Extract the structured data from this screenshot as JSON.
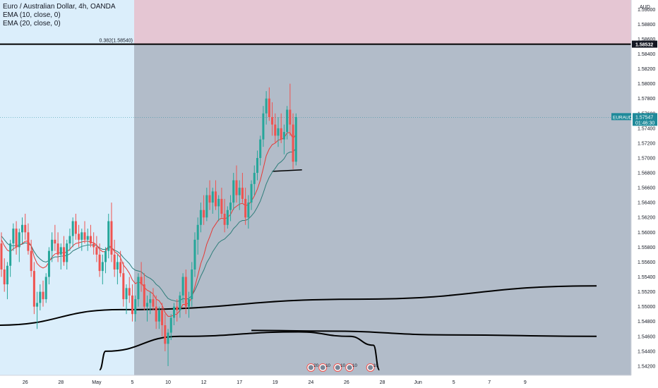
{
  "legend": {
    "symbol_line": "Euro / Australian Dollar, 4h, OANDA",
    "ema10_line": "EMA (10, close, 0)",
    "ema20_line": "EMA (20, close, 0)"
  },
  "colors": {
    "bull": "#26a69a",
    "bear": "#ef5350",
    "ema10": "#e53935",
    "ema20": "#2e7d7a",
    "left_bg": "#dbeefb",
    "zone_gray": "#b2bcc9",
    "zone_pink": "#e5c6d3",
    "axis_bg": "#ffffff",
    "price_label_bg": "#1f8a9a",
    "level_label_bg": "#131722"
  },
  "chart_data": {
    "type": "candlestick",
    "title": "Euro / Australian Dollar, 4h, OANDA",
    "currency_label": "AUD",
    "indicators": [
      "EMA (10, close, 0)",
      "EMA (20, close, 0)"
    ],
    "y_range": [
      1.541,
      1.6
    ],
    "y_ticks": [
      "1.59000",
      "1.58800",
      "1.58600",
      "1.58400",
      "1.58200",
      "1.58000",
      "1.57800",
      "1.57600",
      "1.57400",
      "1.57200",
      "1.57000",
      "1.56800",
      "1.56600",
      "1.56400",
      "1.56200",
      "1.56000",
      "1.55800",
      "1.55600",
      "1.55400",
      "1.55200",
      "1.55000",
      "1.54800",
      "1.54600",
      "1.54400",
      "1.54200"
    ],
    "x_ticks": [
      {
        "label": "26",
        "i": 8
      },
      {
        "label": "28",
        "i": 20
      },
      {
        "label": "May",
        "i": 32
      },
      {
        "label": "5",
        "i": 44
      },
      {
        "label": "10",
        "i": 56
      },
      {
        "label": "12",
        "i": 68
      },
      {
        "label": "17",
        "i": 80
      },
      {
        "label": "19",
        "i": 92
      },
      {
        "label": "24",
        "i": 104
      },
      {
        "label": "26",
        "i": 116
      },
      {
        "label": "28",
        "i": 128
      },
      {
        "label": "Jun",
        "i": 140
      },
      {
        "label": "5",
        "i": 152
      },
      {
        "label": "7",
        "i": 164
      },
      {
        "label": "9",
        "i": 176
      }
    ],
    "fib_level": {
      "label": "0.382(1.58540)",
      "value": 1.5854
    },
    "level_line": {
      "label": "1.58532",
      "value": 1.58532
    },
    "current_price": {
      "symbol": "EURAUD",
      "value": "1.57547",
      "countdown": "01:46:30",
      "y": 1.57547
    },
    "candles": [
      [
        1.5585,
        1.56,
        1.554,
        1.555
      ],
      [
        1.555,
        1.5565,
        1.552,
        1.553
      ],
      [
        1.553,
        1.556,
        1.551,
        1.5555
      ],
      [
        1.5555,
        1.559,
        1.554,
        1.5585
      ],
      [
        1.5585,
        1.5612,
        1.5575,
        1.5605
      ],
      [
        1.5605,
        1.5615,
        1.557,
        1.558
      ],
      [
        1.558,
        1.5605,
        1.556,
        1.56
      ],
      [
        1.56,
        1.562,
        1.5585,
        1.561
      ],
      [
        1.561,
        1.5625,
        1.559,
        1.56
      ],
      [
        1.56,
        1.5612,
        1.557,
        1.5575
      ],
      [
        1.5575,
        1.559,
        1.554,
        1.5548
      ],
      [
        1.5548,
        1.556,
        1.549,
        1.55
      ],
      [
        1.55,
        1.552,
        1.547,
        1.5505
      ],
      [
        1.5505,
        1.553,
        1.5495,
        1.552
      ],
      [
        1.552,
        1.5535,
        1.55,
        1.551
      ],
      [
        1.551,
        1.5545,
        1.5505,
        1.554
      ],
      [
        1.554,
        1.558,
        1.553,
        1.5575
      ],
      [
        1.5575,
        1.56,
        1.556,
        1.559
      ],
      [
        1.559,
        1.561,
        1.5575,
        1.5585
      ],
      [
        1.5585,
        1.56,
        1.556,
        1.557
      ],
      [
        1.557,
        1.5585,
        1.555,
        1.558
      ],
      [
        1.558,
        1.5595,
        1.5555,
        1.556
      ],
      [
        1.556,
        1.559,
        1.555,
        1.5585
      ],
      [
        1.5585,
        1.5605,
        1.5575,
        1.5595
      ],
      [
        1.5595,
        1.562,
        1.558,
        1.5615
      ],
      [
        1.5615,
        1.5625,
        1.559,
        1.5598
      ],
      [
        1.5598,
        1.561,
        1.558,
        1.559
      ],
      [
        1.559,
        1.5605,
        1.5575,
        1.56
      ],
      [
        1.56,
        1.5615,
        1.5585,
        1.559
      ],
      [
        1.559,
        1.5605,
        1.5575,
        1.5595
      ],
      [
        1.5595,
        1.561,
        1.558,
        1.5585
      ],
      [
        1.5585,
        1.56,
        1.557,
        1.558
      ],
      [
        1.558,
        1.5595,
        1.556,
        1.557
      ],
      [
        1.557,
        1.5585,
        1.554,
        1.5548
      ],
      [
        1.5548,
        1.557,
        1.553,
        1.556
      ],
      [
        1.556,
        1.558,
        1.5545,
        1.5575
      ],
      [
        1.5575,
        1.5625,
        1.5565,
        1.5615
      ],
      [
        1.5615,
        1.564,
        1.556,
        1.557
      ],
      [
        1.557,
        1.559,
        1.554,
        1.555
      ],
      [
        1.555,
        1.557,
        1.553,
        1.556
      ],
      [
        1.556,
        1.5575,
        1.554,
        1.5545
      ],
      [
        1.5545,
        1.556,
        1.55,
        1.551
      ],
      [
        1.551,
        1.553,
        1.549,
        1.5525
      ],
      [
        1.5525,
        1.554,
        1.5505,
        1.5515
      ],
      [
        1.5515,
        1.553,
        1.548,
        1.549
      ],
      [
        1.549,
        1.5515,
        1.548,
        1.551
      ],
      [
        1.551,
        1.5545,
        1.55,
        1.554
      ],
      [
        1.554,
        1.556,
        1.552,
        1.553
      ],
      [
        1.553,
        1.5545,
        1.5495,
        1.55
      ],
      [
        1.55,
        1.5515,
        1.548,
        1.5505
      ],
      [
        1.5505,
        1.552,
        1.549,
        1.551
      ],
      [
        1.551,
        1.5525,
        1.5495,
        1.55
      ],
      [
        1.55,
        1.5515,
        1.547,
        1.548
      ],
      [
        1.548,
        1.55,
        1.547,
        1.5495
      ],
      [
        1.5495,
        1.5505,
        1.546,
        1.5475
      ],
      [
        1.5475,
        1.549,
        1.544,
        1.545
      ],
      [
        1.545,
        1.547,
        1.542,
        1.5465
      ],
      [
        1.5465,
        1.549,
        1.5455,
        1.5485
      ],
      [
        1.5485,
        1.5505,
        1.5475,
        1.55
      ],
      [
        1.55,
        1.551,
        1.548,
        1.5495
      ],
      [
        1.5495,
        1.552,
        1.5485,
        1.5515
      ],
      [
        1.5515,
        1.5545,
        1.5505,
        1.554
      ],
      [
        1.554,
        1.555,
        1.549,
        1.55
      ],
      [
        1.55,
        1.552,
        1.5485,
        1.551
      ],
      [
        1.551,
        1.556,
        1.55,
        1.555
      ],
      [
        1.555,
        1.56,
        1.554,
        1.559
      ],
      [
        1.559,
        1.562,
        1.557,
        1.561
      ],
      [
        1.561,
        1.564,
        1.56,
        1.563
      ],
      [
        1.563,
        1.565,
        1.561,
        1.562
      ],
      [
        1.562,
        1.566,
        1.5615,
        1.565
      ],
      [
        1.565,
        1.567,
        1.563,
        1.564
      ],
      [
        1.564,
        1.566,
        1.5625,
        1.5655
      ],
      [
        1.5655,
        1.567,
        1.563,
        1.5635
      ],
      [
        1.5635,
        1.565,
        1.5615,
        1.5645
      ],
      [
        1.5645,
        1.566,
        1.562,
        1.5625
      ],
      [
        1.5625,
        1.5645,
        1.56,
        1.561
      ],
      [
        1.561,
        1.5635,
        1.5605,
        1.563
      ],
      [
        1.563,
        1.565,
        1.5615,
        1.564
      ],
      [
        1.564,
        1.568,
        1.563,
        1.567
      ],
      [
        1.567,
        1.569,
        1.564,
        1.565
      ],
      [
        1.565,
        1.567,
        1.563,
        1.566
      ],
      [
        1.566,
        1.568,
        1.564,
        1.5645
      ],
      [
        1.5645,
        1.566,
        1.561,
        1.562
      ],
      [
        1.562,
        1.565,
        1.5605,
        1.564
      ],
      [
        1.564,
        1.567,
        1.563,
        1.5665
      ],
      [
        1.5665,
        1.569,
        1.565,
        1.568
      ],
      [
        1.568,
        1.571,
        1.567,
        1.57
      ],
      [
        1.57,
        1.573,
        1.569,
        1.5725
      ],
      [
        1.5725,
        1.577,
        1.5715,
        1.576
      ],
      [
        1.576,
        1.579,
        1.5745,
        1.578
      ],
      [
        1.578,
        1.5795,
        1.575,
        1.5755
      ],
      [
        1.5755,
        1.5775,
        1.573,
        1.5745
      ],
      [
        1.5745,
        1.576,
        1.572,
        1.573
      ],
      [
        1.573,
        1.5755,
        1.5715,
        1.574
      ],
      [
        1.574,
        1.576,
        1.572,
        1.5725
      ],
      [
        1.5725,
        1.5745,
        1.5705,
        1.5735
      ],
      [
        1.5735,
        1.577,
        1.5725,
        1.5765
      ],
      [
        1.5765,
        1.58,
        1.573,
        1.5745
      ],
      [
        1.5745,
        1.576,
        1.5685,
        1.5695
      ],
      [
        1.5695,
        1.576,
        1.569,
        1.5755
      ]
    ],
    "ema10": [
      1.559,
      1.5582,
      1.5576,
      1.5574,
      1.5578,
      1.558,
      1.5582,
      1.5585,
      1.5588,
      1.5588,
      1.5582,
      1.5567,
      1.5558,
      1.5554,
      1.5552,
      1.5554,
      1.556,
      1.5567,
      1.5571,
      1.5572,
      1.5573,
      1.5572,
      1.5574,
      1.5577,
      1.5582,
      1.5585,
      1.5586,
      1.5587,
      1.5588,
      1.5588,
      1.5587,
      1.5586,
      1.5583,
      1.5577,
      1.5574,
      1.5574,
      1.5582,
      1.558,
      1.5574,
      1.5571,
      1.5566,
      1.5556,
      1.5551,
      1.5545,
      1.5536,
      1.5531,
      1.5533,
      1.5532,
      1.5526,
      1.5522,
      1.552,
      1.5517,
      1.551,
      1.5508,
      1.5502,
      1.5492,
      1.5487,
      1.5487,
      1.5489,
      1.549,
      1.5495,
      1.5503,
      1.5503,
      1.5505,
      1.5513,
      1.5527,
      1.5542,
      1.5558,
      1.5569,
      1.5584,
      1.5594,
      1.5605,
      1.5611,
      1.5617,
      1.5619,
      1.5618,
      1.562,
      1.5624,
      1.5632,
      1.5635,
      1.5638,
      1.5639,
      1.5636,
      1.5637,
      1.5642,
      1.5649,
      1.5658,
      1.567,
      1.5686,
      1.5703,
      1.5712,
      1.5718,
      1.572,
      1.5724,
      1.5725,
      1.5727,
      1.5734,
      1.5734,
      1.5726,
      1.5732
    ],
    "ema20": [
      1.5595,
      1.559,
      1.5585,
      1.5582,
      1.5582,
      1.5582,
      1.5583,
      1.5584,
      1.5586,
      1.5585,
      1.5582,
      1.5574,
      1.5568,
      1.5564,
      1.5561,
      1.556,
      1.5562,
      1.5565,
      1.5567,
      1.5567,
      1.5568,
      1.5568,
      1.5569,
      1.5571,
      1.5575,
      1.5577,
      1.5579,
      1.5581,
      1.5582,
      1.5583,
      1.5583,
      1.5583,
      1.5582,
      1.5579,
      1.5577,
      1.5577,
      1.558,
      1.5579,
      1.5576,
      1.5574,
      1.5571,
      1.5566,
      1.5562,
      1.5558,
      1.5552,
      1.5549,
      1.5548,
      1.5547,
      1.5543,
      1.554,
      1.5538,
      1.5535,
      1.553,
      1.5527,
      1.5522,
      1.5516,
      1.5511,
      1.5509,
      1.5508,
      1.5507,
      1.5508,
      1.5511,
      1.551,
      1.5511,
      1.5515,
      1.5522,
      1.5531,
      1.5541,
      1.5549,
      1.5559,
      1.5566,
      1.5574,
      1.558,
      1.5586,
      1.5589,
      1.5591,
      1.5595,
      1.5599,
      1.5605,
      1.5609,
      1.5614,
      1.5616,
      1.5616,
      1.5618,
      1.5622,
      1.5627,
      1.5634,
      1.5642,
      1.5653,
      1.5665,
      1.5674,
      1.5681,
      1.5686,
      1.5692,
      1.5695,
      1.5699,
      1.5706,
      1.5708,
      1.5708,
      1.5713
    ],
    "long_curve": [
      [
        -1,
        1.5475
      ],
      [
        40,
        1.5496
      ],
      [
        120,
        1.551
      ],
      [
        200,
        1.5528
      ]
    ],
    "arc_curve": [
      [
        33,
        1.5415
      ],
      [
        35,
        1.544
      ],
      [
        60,
        1.546
      ],
      [
        100,
        1.5466
      ],
      [
        117,
        1.546
      ],
      [
        125,
        1.5448
      ],
      [
        127,
        1.5415
      ]
    ],
    "right_curve": [
      [
        84,
        1.5468
      ],
      [
        110,
        1.5467
      ],
      [
        150,
        1.5462
      ],
      [
        200,
        1.546
      ]
    ],
    "support_segment": [
      [
        91,
        1.5682
      ],
      [
        101,
        1.5684
      ]
    ],
    "event_markers": [
      {
        "i": 104,
        "label": "20"
      },
      {
        "i": 108,
        "label": "10"
      },
      {
        "i": 113,
        "label": "10"
      },
      {
        "i": 117,
        "label": "10"
      },
      {
        "i": 124,
        "label": "10"
      }
    ]
  }
}
